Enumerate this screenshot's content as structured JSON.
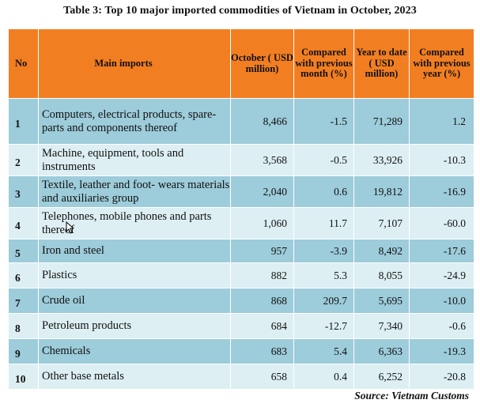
{
  "title": "Table 3: Top 10 major imported commodities of Vietnam in October, 2023",
  "headers": {
    "no": "No",
    "main_imports": "Main imports",
    "october": "October ( USD million)",
    "mom": "Compared with previous month (%)",
    "ytd": "Year to date ( USD million)",
    "yoy": "Compared with previous year (%)"
  },
  "rows": [
    {
      "no": "1",
      "name": "Computers, electrical products, spare-parts and  components thereof",
      "october": "8,466",
      "mom": "-1.5",
      "ytd": "71,289",
      "yoy": "1.2"
    },
    {
      "no": "2",
      "name": "Machine, equipment, tools and instruments",
      "october": "3,568",
      "mom": "-0.5",
      "ytd": "33,926",
      "yoy": "-10.3"
    },
    {
      "no": "3",
      "name": "Textile, leather and foot- wears materials and auxiliaries group",
      "october": "2,040",
      "mom": "0.6",
      "ytd": "19,812",
      "yoy": "-16.9"
    },
    {
      "no": "4",
      "name": "Telephones, mobile phones and parts thereof",
      "october": "1,060",
      "mom": "11.7",
      "ytd": "7,107",
      "yoy": "-60.0"
    },
    {
      "no": "5",
      "name": "Iron and steel",
      "october": "957",
      "mom": "-3.9",
      "ytd": "8,492",
      "yoy": "-17.6"
    },
    {
      "no": "6",
      "name": "Plastics",
      "october": "882",
      "mom": "5.3",
      "ytd": "8,055",
      "yoy": "-24.9"
    },
    {
      "no": "7",
      "name": "Crude oil",
      "october": "868",
      "mom": "209.7",
      "ytd": "5,695",
      "yoy": "-10.0"
    },
    {
      "no": "8",
      "name": "Petroleum products",
      "october": "684",
      "mom": "-12.7",
      "ytd": "7,340",
      "yoy": "-0.6"
    },
    {
      "no": "9",
      "name": "Chemicals",
      "october": "683",
      "mom": "5.4",
      "ytd": "6,363",
      "yoy": "-19.3"
    },
    {
      "no": "10",
      "name": "Other base metals",
      "october": "658",
      "mom": "0.4",
      "ytd": "6,252",
      "yoy": "-20.8"
    }
  ],
  "source": "Source: Vietnam Customs",
  "colors": {
    "header": "#F27E22",
    "row_dark": "#9DCCDA",
    "row_light": "#DDEFF3"
  },
  "cursor_icon": "mouse-pointer-icon"
}
